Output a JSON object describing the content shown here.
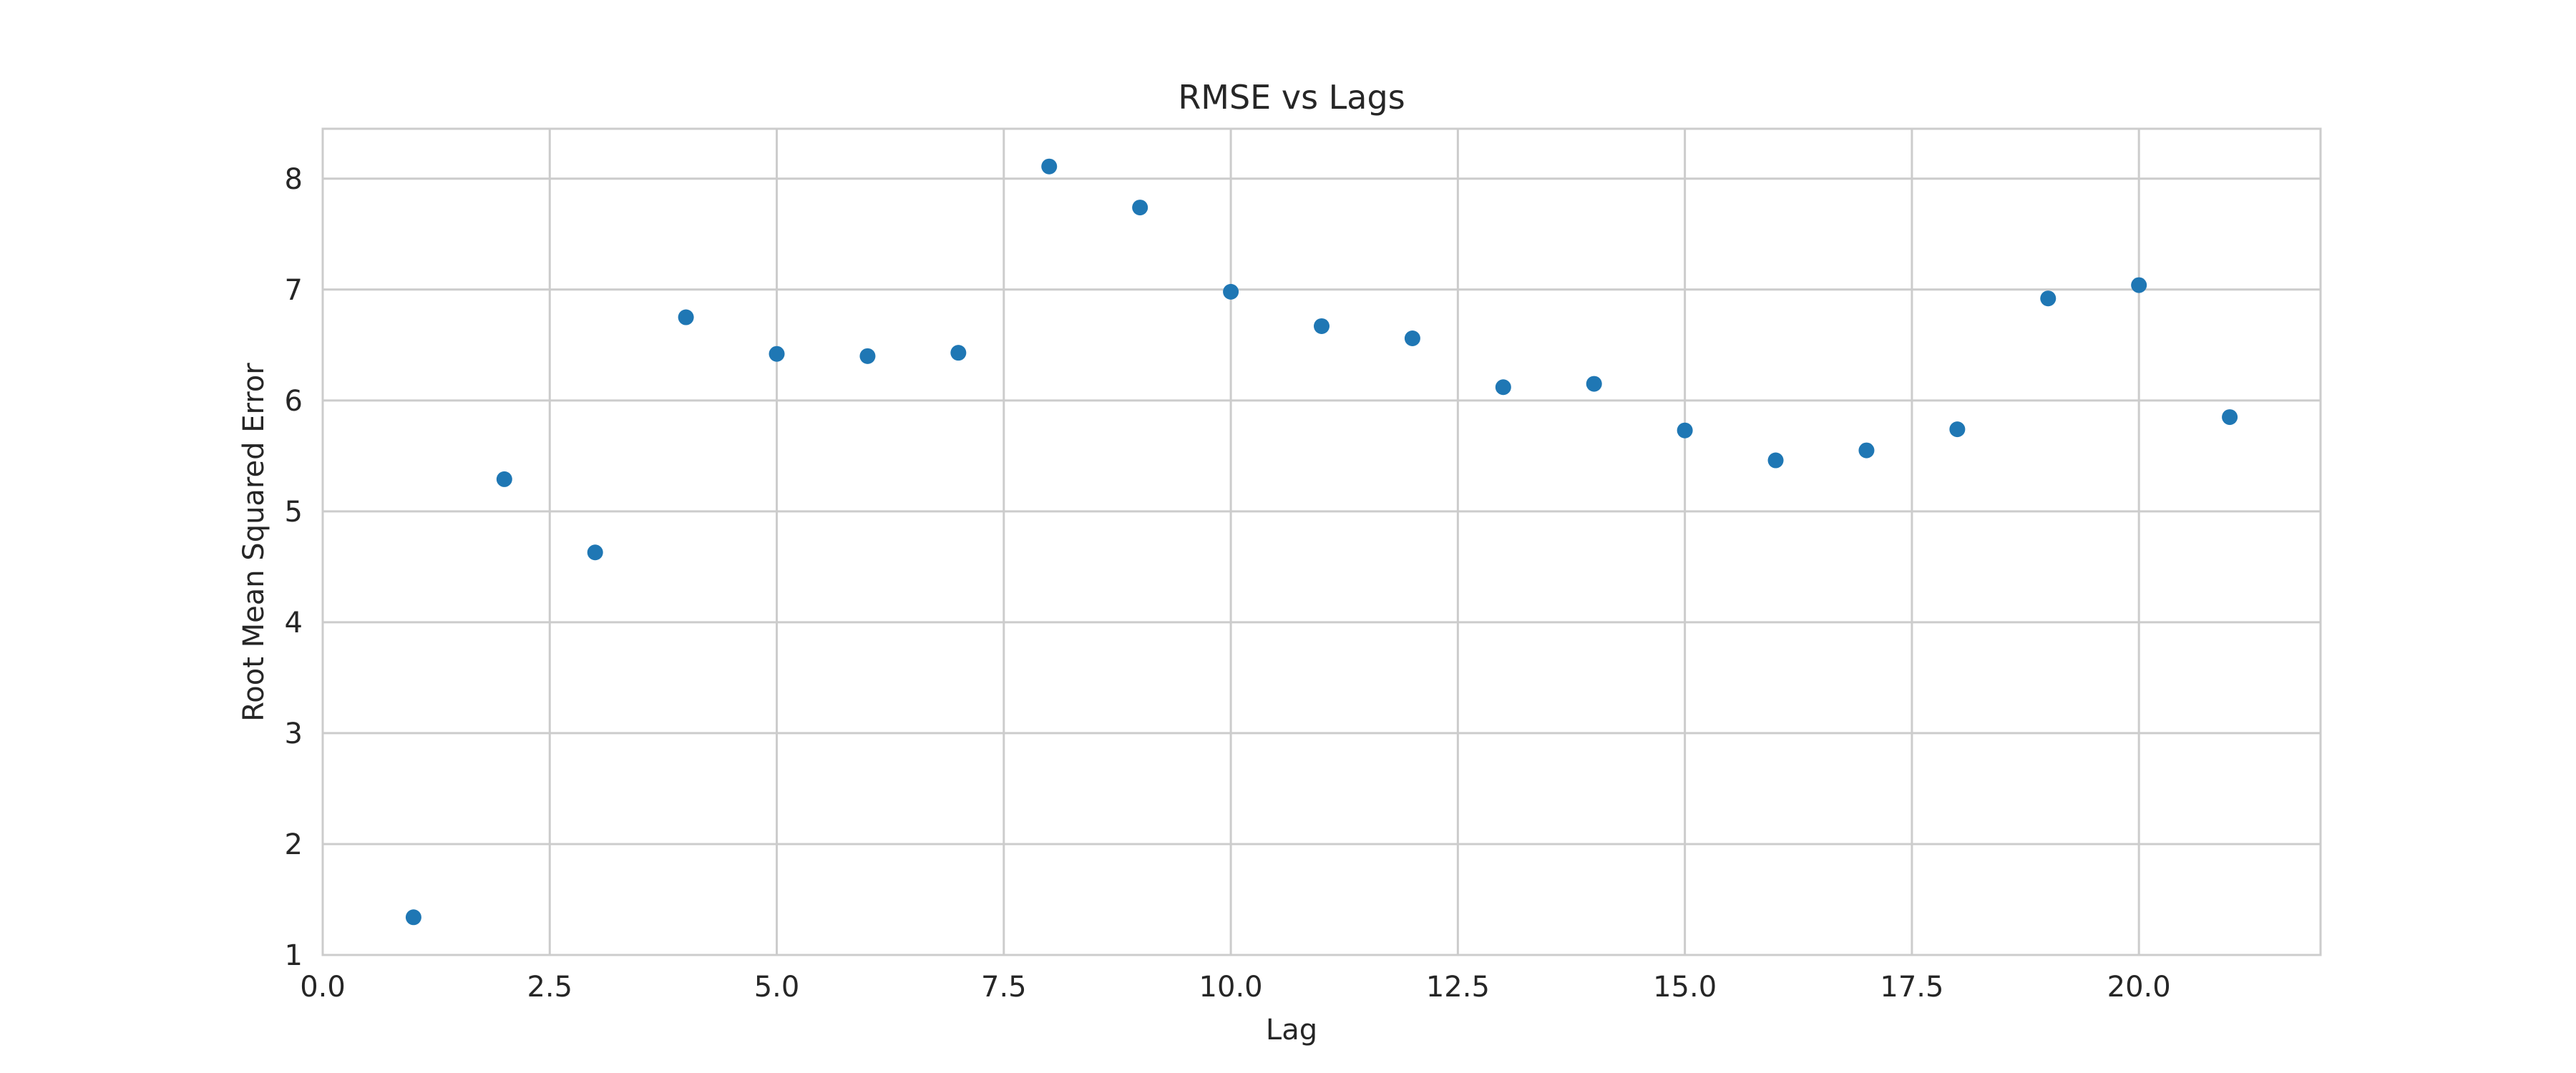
{
  "chart_data": {
    "type": "scatter",
    "title": "RMSE vs Lags",
    "xlabel": "Lag",
    "ylabel": "Root Mean Squared Error",
    "xlim": [
      0,
      22
    ],
    "ylim": [
      1,
      8.45
    ],
    "xticks": [
      0,
      2.5,
      5,
      7.5,
      10,
      12.5,
      15,
      17.5,
      20
    ],
    "xtick_labels": [
      "0.0",
      "2.5",
      "5.0",
      "7.5",
      "10.0",
      "12.5",
      "15.0",
      "17.5",
      "20.0"
    ],
    "yticks": [
      1,
      2,
      3,
      4,
      5,
      6,
      7,
      8
    ],
    "ytick_labels": [
      "1",
      "2",
      "3",
      "4",
      "5",
      "6",
      "7",
      "8"
    ],
    "grid": true,
    "color": "#1f77b4",
    "series": [
      {
        "x": [
          1,
          2,
          3,
          4,
          5,
          6,
          7,
          8,
          9,
          10,
          11,
          12,
          13,
          14,
          15,
          16,
          17,
          18,
          19,
          20,
          21
        ],
        "y": [
          1.34,
          5.29,
          4.63,
          6.75,
          6.42,
          6.4,
          6.43,
          8.11,
          7.74,
          6.98,
          6.67,
          6.56,
          6.12,
          6.15,
          5.73,
          5.46,
          5.55,
          5.74,
          6.92,
          7.04,
          5.85
        ]
      }
    ]
  }
}
